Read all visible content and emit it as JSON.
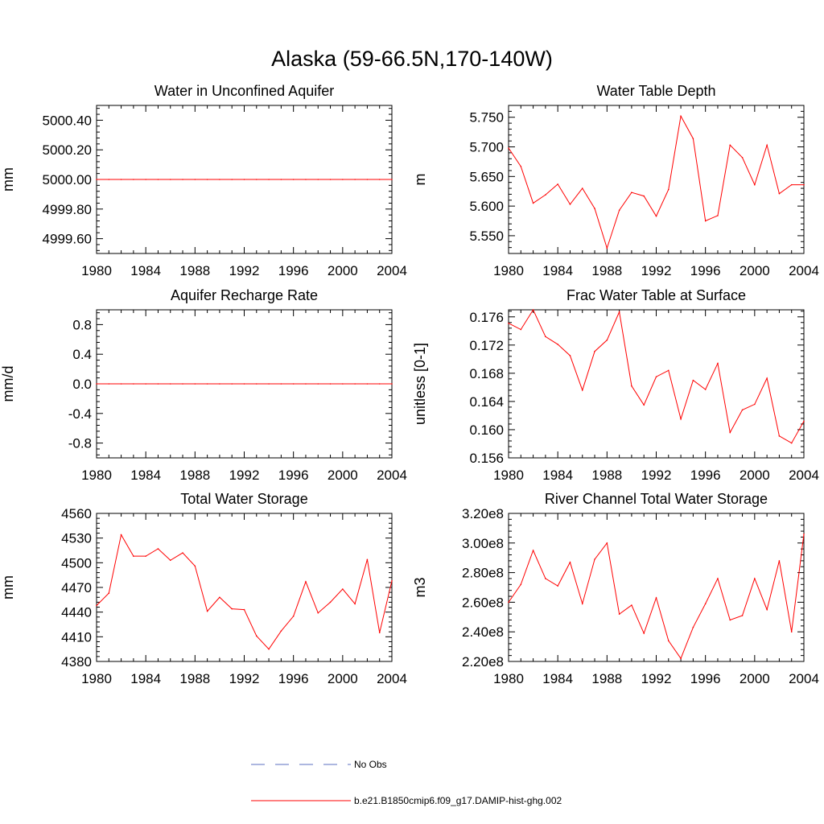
{
  "figure_title": "Alaska (59-66.5N,170-140W)",
  "colors": {
    "model": "#ff0000",
    "obs": "#5b6fc0",
    "axes": "#000000"
  },
  "legend": [
    {
      "label": "No Obs",
      "style": "dashed",
      "color": "#5b6fc0"
    },
    {
      "label": "b.e21.B1850cmip6.f09_g17.DAMIP-hist-ghg.002",
      "style": "solid",
      "color": "#ff0000"
    }
  ],
  "chart_data": [
    {
      "type": "line",
      "title": "Water in Unconfined Aquifer",
      "ylabel": "mm",
      "xlim": [
        1980,
        2004
      ],
      "ylim": [
        4999.5,
        5000.5
      ],
      "xticks": [
        1980,
        1984,
        1988,
        1992,
        1996,
        2000,
        2004
      ],
      "yticks": [
        4999.6,
        4999.8,
        5000.0,
        5000.2,
        5000.4
      ],
      "ytick_labels": [
        "4999.60",
        "4999.80",
        "5000.00",
        "5000.20",
        "5000.40"
      ],
      "series": [
        {
          "x": [
            1980,
            1981,
            1982,
            1983,
            1984,
            1985,
            1986,
            1987,
            1988,
            1989,
            1990,
            1991,
            1992,
            1993,
            1994,
            1995,
            1996,
            1997,
            1998,
            1999,
            2000,
            2001,
            2002,
            2003,
            2004
          ],
          "values": [
            5000,
            5000,
            5000,
            5000,
            5000,
            5000,
            5000,
            5000,
            5000,
            5000,
            5000,
            5000,
            5000,
            5000,
            5000,
            5000,
            5000,
            5000,
            5000,
            5000,
            5000,
            5000,
            5000,
            5000,
            5000
          ]
        }
      ]
    },
    {
      "type": "line",
      "title": "Water Table Depth",
      "ylabel": "m",
      "xlim": [
        1980,
        2004
      ],
      "ylim": [
        5.52,
        5.77
      ],
      "xticks": [
        1980,
        1984,
        1988,
        1992,
        1996,
        2000,
        2004
      ],
      "yticks": [
        5.55,
        5.6,
        5.65,
        5.7,
        5.75
      ],
      "ytick_labels": [
        "5.550",
        "5.600",
        "5.650",
        "5.700",
        "5.750"
      ],
      "series": [
        {
          "x": [
            1980,
            1981,
            1982,
            1983,
            1984,
            1985,
            1986,
            1987,
            1988,
            1989,
            1990,
            1991,
            1992,
            1993,
            1994,
            1995,
            1996,
            1997,
            1998,
            1999,
            2000,
            2001,
            2002,
            2003,
            2004
          ],
          "values": [
            5.698,
            5.667,
            5.605,
            5.619,
            5.637,
            5.603,
            5.63,
            5.596,
            5.529,
            5.593,
            5.623,
            5.617,
            5.583,
            5.628,
            5.752,
            5.714,
            5.575,
            5.584,
            5.703,
            5.682,
            5.636,
            5.703,
            5.621,
            5.636,
            5.636
          ]
        }
      ]
    },
    {
      "type": "line",
      "title": "Aquifer Recharge Rate",
      "ylabel": "mm/d",
      "xlim": [
        1980,
        2004
      ],
      "ylim": [
        -1.0,
        1.0
      ],
      "xticks": [
        1980,
        1984,
        1988,
        1992,
        1996,
        2000,
        2004
      ],
      "yticks": [
        -0.8,
        -0.4,
        0.0,
        0.4,
        0.8
      ],
      "ytick_labels": [
        "-0.8",
        "-0.4",
        "0.0",
        "0.4",
        "0.8"
      ],
      "series": [
        {
          "x": [
            1980,
            1981,
            1982,
            1983,
            1984,
            1985,
            1986,
            1987,
            1988,
            1989,
            1990,
            1991,
            1992,
            1993,
            1994,
            1995,
            1996,
            1997,
            1998,
            1999,
            2000,
            2001,
            2002,
            2003,
            2004
          ],
          "values": [
            0,
            0,
            0,
            0,
            0,
            0,
            0,
            0,
            0,
            0,
            0,
            0,
            0,
            0,
            0,
            0,
            0,
            0,
            0,
            0,
            0,
            0,
            0,
            0,
            0
          ]
        }
      ]
    },
    {
      "type": "line",
      "title": "Frac Water Table at Surface",
      "ylabel": "unitless [0-1]",
      "xlim": [
        1980,
        2004
      ],
      "ylim": [
        0.156,
        0.177
      ],
      "xticks": [
        1980,
        1984,
        1988,
        1992,
        1996,
        2000,
        2004
      ],
      "yticks": [
        0.156,
        0.16,
        0.164,
        0.168,
        0.172,
        0.176
      ],
      "ytick_labels": [
        "0.156",
        "0.160",
        "0.164",
        "0.168",
        "0.172",
        "0.176"
      ],
      "series": [
        {
          "x": [
            1980,
            1981,
            1982,
            1983,
            1984,
            1985,
            1986,
            1987,
            1988,
            1989,
            1990,
            1991,
            1992,
            1993,
            1994,
            1995,
            1996,
            1997,
            1998,
            1999,
            2000,
            2001,
            2002,
            2003,
            2004
          ],
          "values": [
            0.1751,
            0.1742,
            0.177,
            0.1732,
            0.1721,
            0.1705,
            0.1656,
            0.1711,
            0.1727,
            0.1767,
            0.1662,
            0.1635,
            0.1675,
            0.1684,
            0.1615,
            0.167,
            0.1657,
            0.1694,
            0.1596,
            0.1628,
            0.1636,
            0.1673,
            0.1591,
            0.1581,
            0.1612
          ]
        }
      ]
    },
    {
      "type": "line",
      "title": "Total Water Storage",
      "ylabel": "mm",
      "xlim": [
        1980,
        2004
      ],
      "ylim": [
        4380,
        4560
      ],
      "xticks": [
        1980,
        1984,
        1988,
        1992,
        1996,
        2000,
        2004
      ],
      "yticks": [
        4380,
        4410,
        4440,
        4470,
        4500,
        4530,
        4560
      ],
      "ytick_labels": [
        "4380",
        "4410",
        "4440",
        "4470",
        "4500",
        "4530",
        "4560"
      ],
      "series": [
        {
          "x": [
            1980,
            1981,
            1982,
            1983,
            1984,
            1985,
            1986,
            1987,
            1988,
            1989,
            1990,
            1991,
            1992,
            1993,
            1994,
            1995,
            1996,
            1997,
            1998,
            1999,
            2000,
            2001,
            2002,
            2003,
            2004
          ],
          "values": [
            4448,
            4463,
            4534,
            4508,
            4508,
            4517,
            4503,
            4512,
            4496,
            4441,
            4458,
            4444,
            4443,
            4411,
            4395,
            4417,
            4435,
            4477,
            4439,
            4452,
            4468,
            4450,
            4504,
            4415,
            4478
          ]
        }
      ]
    },
    {
      "type": "line",
      "title": "River Channel Total Water Storage",
      "ylabel": "m3",
      "xlim": [
        1980,
        2004
      ],
      "ylim": [
        220000000.0,
        320000000.0
      ],
      "xticks": [
        1980,
        1984,
        1988,
        1992,
        1996,
        2000,
        2004
      ],
      "yticks": [
        220000000.0,
        240000000.0,
        260000000.0,
        280000000.0,
        300000000.0,
        320000000.0
      ],
      "ytick_labels": [
        "2.20e8",
        "2.40e8",
        "2.60e8",
        "2.80e8",
        "3.00e8",
        "3.20e8"
      ],
      "series": [
        {
          "x": [
            1980,
            1981,
            1982,
            1983,
            1984,
            1985,
            1986,
            1987,
            1988,
            1989,
            1990,
            1991,
            1992,
            1993,
            1994,
            1995,
            1996,
            1997,
            1998,
            1999,
            2000,
            2001,
            2002,
            2003,
            2004
          ],
          "values": [
            260000000.0,
            272000000.0,
            295000000.0,
            276000000.0,
            271000000.0,
            287000000.0,
            259000000.0,
            289000000.0,
            300000000.0,
            252000000.0,
            258000000.0,
            239000000.0,
            263000000.0,
            234000000.0,
            222000000.0,
            243000000.0,
            259000000.0,
            276000000.0,
            248000000.0,
            251000000.0,
            276000000.0,
            255000000.0,
            288000000.0,
            240000000.0,
            306000000.0
          ]
        }
      ]
    }
  ]
}
